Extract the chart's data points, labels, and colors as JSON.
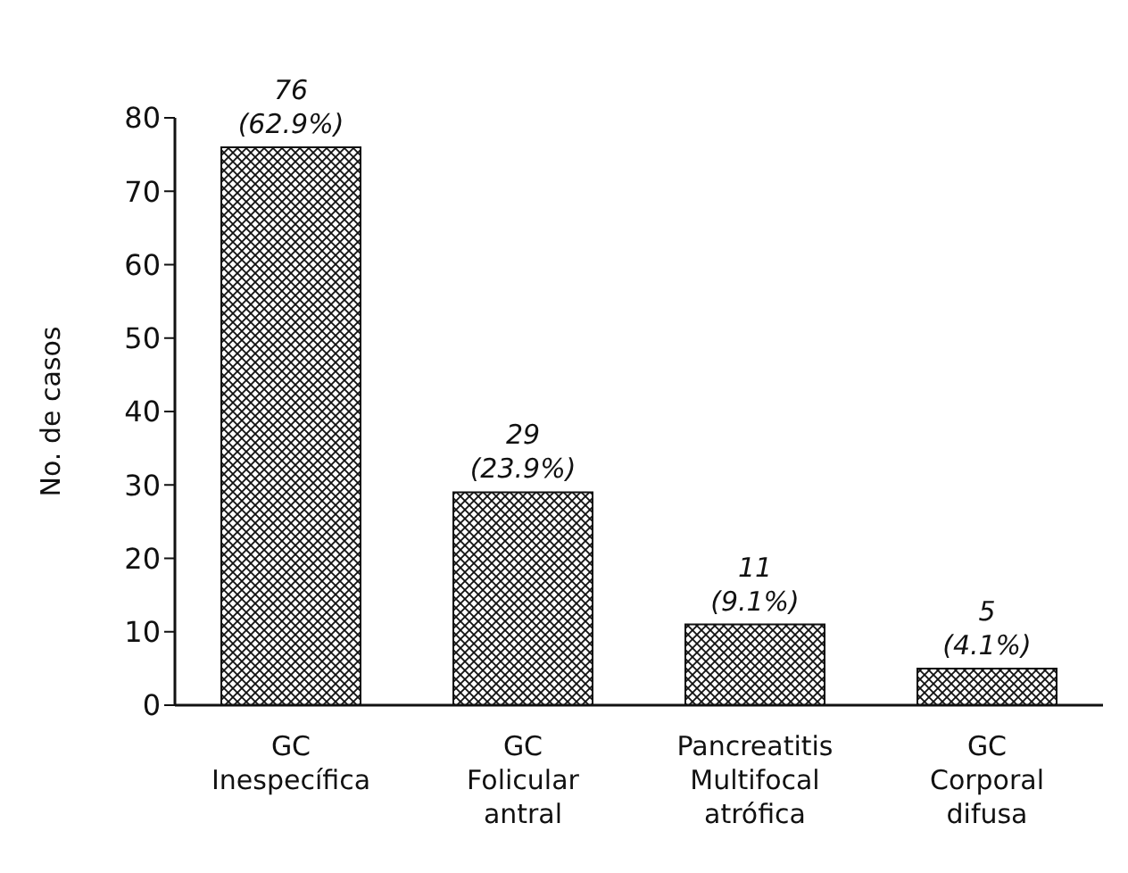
{
  "chart_data": {
    "type": "bar",
    "ylabel": "No. de casos",
    "categories": [
      "GC Inespecífica",
      "GC Folicular antral",
      "Pancreatitis Multifocal atrófica",
      "GC Corporal difusa"
    ],
    "values": [
      76,
      29,
      11,
      5
    ],
    "value_labels": [
      "76 (62.9%)",
      "29 (23.9%)",
      "11 (9.1%)",
      "5 (4.1%)"
    ],
    "color": "#111111",
    "ylim": [
      0,
      80
    ],
    "yticks": [
      0,
      10,
      20,
      30,
      40,
      50,
      60,
      70,
      80
    ],
    "grid": false,
    "legend": false
  }
}
